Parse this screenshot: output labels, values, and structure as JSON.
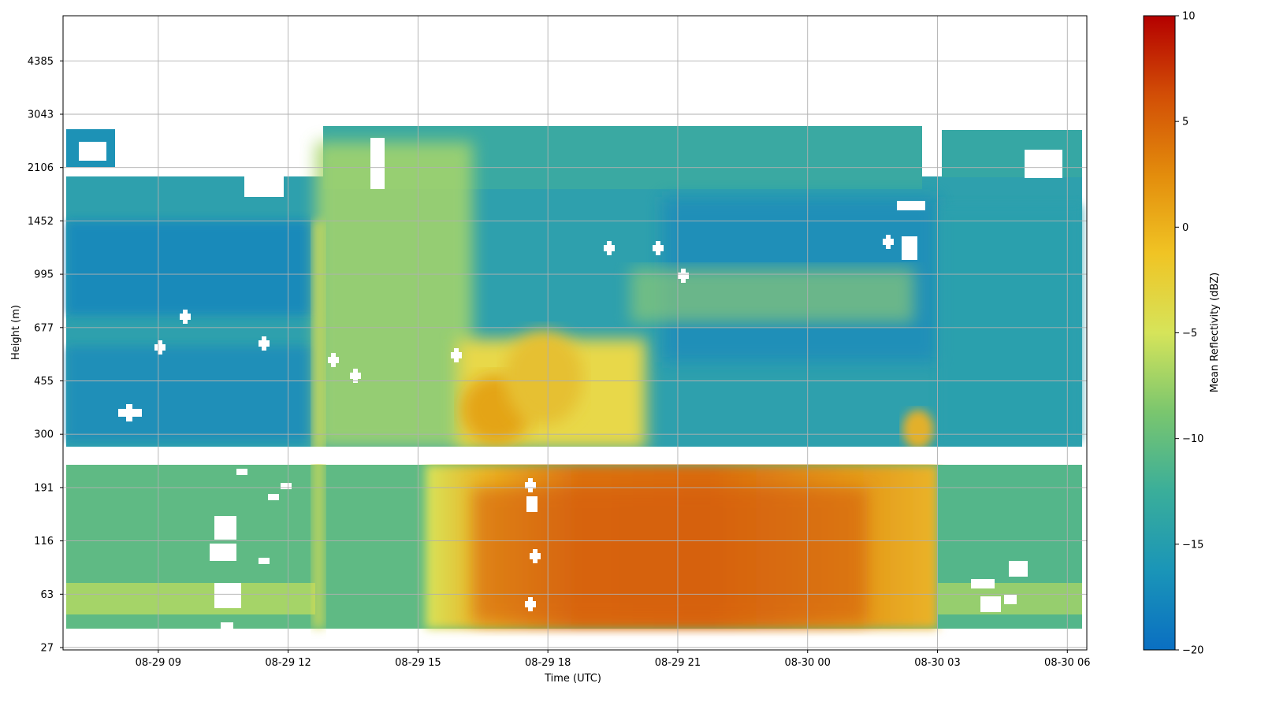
{
  "chart_data": {
    "type": "heatmap",
    "xlabel": "Time (UTC)",
    "ylabel": "Height (m)",
    "colorbar_label": "Mean Reflectivity (dBZ)",
    "x_tick_labels": [
      "08-29 09",
      "08-29 12",
      "08-29 15",
      "08-29 18",
      "08-29 21",
      "08-30 00",
      "08-30 03",
      "08-30 06"
    ],
    "x_range_hours": [
      6.8,
      30.45
    ],
    "y_tick_labels": [
      "27",
      "63",
      "116",
      "191",
      "300",
      "455",
      "677",
      "995",
      "1452",
      "2106",
      "3043",
      "4385"
    ],
    "y_scale": "log-like (ticks at fixed intervals)",
    "colorbar": {
      "range": [
        -20,
        10
      ],
      "ticks": [
        "10",
        "5",
        "0",
        "−5",
        "−10",
        "−15",
        "−20"
      ],
      "colormap": [
        "#0a6fc2",
        "#1a95b8",
        "#3aae9a",
        "#7ac66e",
        "#d6e45a",
        "#f0c424",
        "#e38c0c",
        "#d24e06",
        "#b40000"
      ]
    },
    "grid": true,
    "data_range": {
      "start": "08-29 06:50",
      "end": "08-30 06:15"
    },
    "structure": {
      "lower_layer_top_m": 240,
      "upper_layer_bottom_m": 275,
      "lowest_height_m": 38,
      "cloud_top_m": 2700,
      "gap_description": "data gap between ~240 m and ~275 m"
    },
    "regions": [
      {
        "time": "08-29 07–12:30",
        "height_m": "275–1900",
        "dBZ": -16
      },
      {
        "time": "08-29 12:30–15:30",
        "height_m": "275–2200",
        "dBZ": -9
      },
      {
        "time": "08-29 16–18",
        "height_m": "275–550",
        "dBZ": -2
      },
      {
        "time": "08-29 16–08-30 01",
        "height_m": "40–240",
        "dBZ": 2
      },
      {
        "time": "08-29 18–08-30 03",
        "height_m": "700–2100",
        "dBZ": -14
      },
      {
        "time": "08-30 03–06",
        "height_m": "40–2500",
        "dBZ": -14
      }
    ]
  }
}
